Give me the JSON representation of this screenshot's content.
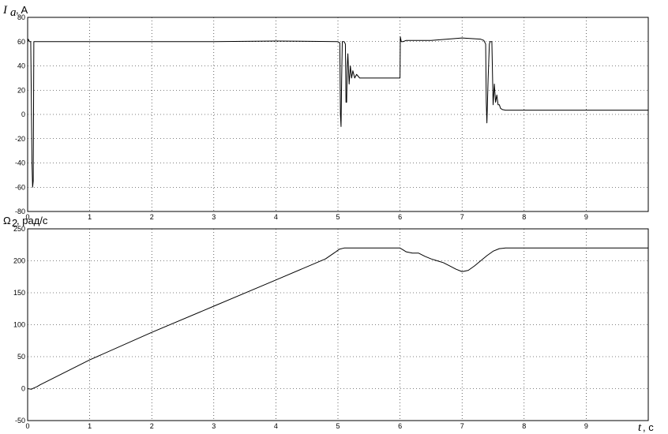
{
  "chart_data": [
    {
      "type": "line",
      "title": "",
      "ylabel_symbol": "I",
      "ylabel_sub": "a",
      "ylabel_rest": ", A",
      "xlabel": "",
      "xlim": [
        0,
        10
      ],
      "ylim": [
        -80,
        80
      ],
      "grid": true,
      "x_ticks": [
        "0",
        "1",
        "2",
        "3",
        "4",
        "5",
        "6",
        "7",
        "8",
        "9"
      ],
      "x_tick_values": [
        0,
        1,
        2,
        3,
        4,
        5,
        6,
        7,
        8,
        9
      ],
      "y_ticks": [
        "-80",
        "-60",
        "-40",
        "-20",
        "0",
        "20",
        "40",
        "60",
        "80"
      ],
      "y_tick_values": [
        -80,
        -60,
        -40,
        -20,
        0,
        20,
        40,
        60,
        80
      ],
      "series": [
        {
          "x": [
            0,
            0.01,
            0.03,
            0.05,
            0.06,
            0.07,
            0.08,
            0.09,
            0.095,
            0.1,
            0.11,
            0.12,
            0.2,
            1,
            2,
            3,
            4,
            5,
            5.03,
            5.04,
            5.05,
            5.06,
            5.07,
            5.1,
            5.12,
            5.13,
            5.14,
            5.15,
            5.16,
            5.18,
            5.2,
            5.22,
            5.24,
            5.27,
            5.3,
            5.35,
            5.4,
            5.5,
            5.7,
            6.0,
            6.005,
            6.02,
            6.05,
            6.1,
            6.5,
            7,
            7.3,
            7.35,
            7.38,
            7.39,
            7.4,
            7.42,
            7.44,
            7.45,
            7.48,
            7.5,
            7.52,
            7.54,
            7.56,
            7.58,
            7.6,
            7.62,
            7.65,
            7.7,
            7.8,
            8,
            9,
            10
          ],
          "y": [
            60,
            62,
            60,
            60,
            10,
            -40,
            -60,
            -55,
            0,
            60,
            60,
            60,
            60,
            60,
            60,
            60,
            60.5,
            60,
            59,
            0,
            -10,
            30,
            60,
            60,
            58,
            10,
            10,
            40,
            50,
            25,
            40,
            30,
            36,
            30,
            33,
            30,
            30,
            30,
            30,
            30,
            64,
            60,
            60,
            61,
            61,
            63,
            62,
            61,
            58,
            10,
            -7,
            30,
            58,
            60,
            60,
            8,
            25,
            10,
            16,
            8,
            8,
            5,
            4,
            3.5,
            3.5,
            3.5,
            3.5,
            3.5
          ]
        }
      ]
    },
    {
      "type": "line",
      "title": "",
      "ylabel_symbol": "Ω",
      "ylabel_sub": "2",
      "ylabel_rest": ", рад/с",
      "xlabel_symbol": "t",
      "xlabel_rest": ", c",
      "xlim": [
        0,
        10
      ],
      "ylim": [
        -50,
        250
      ],
      "grid": true,
      "x_ticks": [
        "0",
        "1",
        "2",
        "3",
        "4",
        "5",
        "6",
        "7",
        "8",
        "9"
      ],
      "x_tick_values": [
        0,
        1,
        2,
        3,
        4,
        5,
        6,
        7,
        8,
        9
      ],
      "y_ticks": [
        "-50",
        "0",
        "50",
        "100",
        "150",
        "200",
        "250"
      ],
      "y_tick_values": [
        -50,
        0,
        50,
        100,
        150,
        200,
        250
      ],
      "series": [
        {
          "x": [
            0,
            0.06,
            0.1,
            0.15,
            0.2,
            1,
            2,
            3,
            4,
            4.8,
            4.95,
            5.02,
            5.1,
            5.2,
            5.5,
            6.0,
            6.05,
            6.1,
            6.2,
            6.3,
            6.4,
            6.5,
            6.6,
            6.7,
            6.8,
            6.9,
            7.0,
            7.1,
            7.2,
            7.3,
            7.4,
            7.5,
            7.6,
            7.7,
            8,
            9,
            10
          ],
          "y": [
            0,
            -1,
            1,
            3,
            6,
            45,
            88,
            129,
            170,
            203,
            213,
            218,
            220,
            220,
            220,
            220,
            217,
            214,
            212,
            212,
            207,
            203,
            200,
            197,
            192,
            187,
            183,
            185,
            192,
            200,
            208,
            215,
            219,
            220,
            220,
            220,
            220
          ]
        }
      ]
    }
  ]
}
